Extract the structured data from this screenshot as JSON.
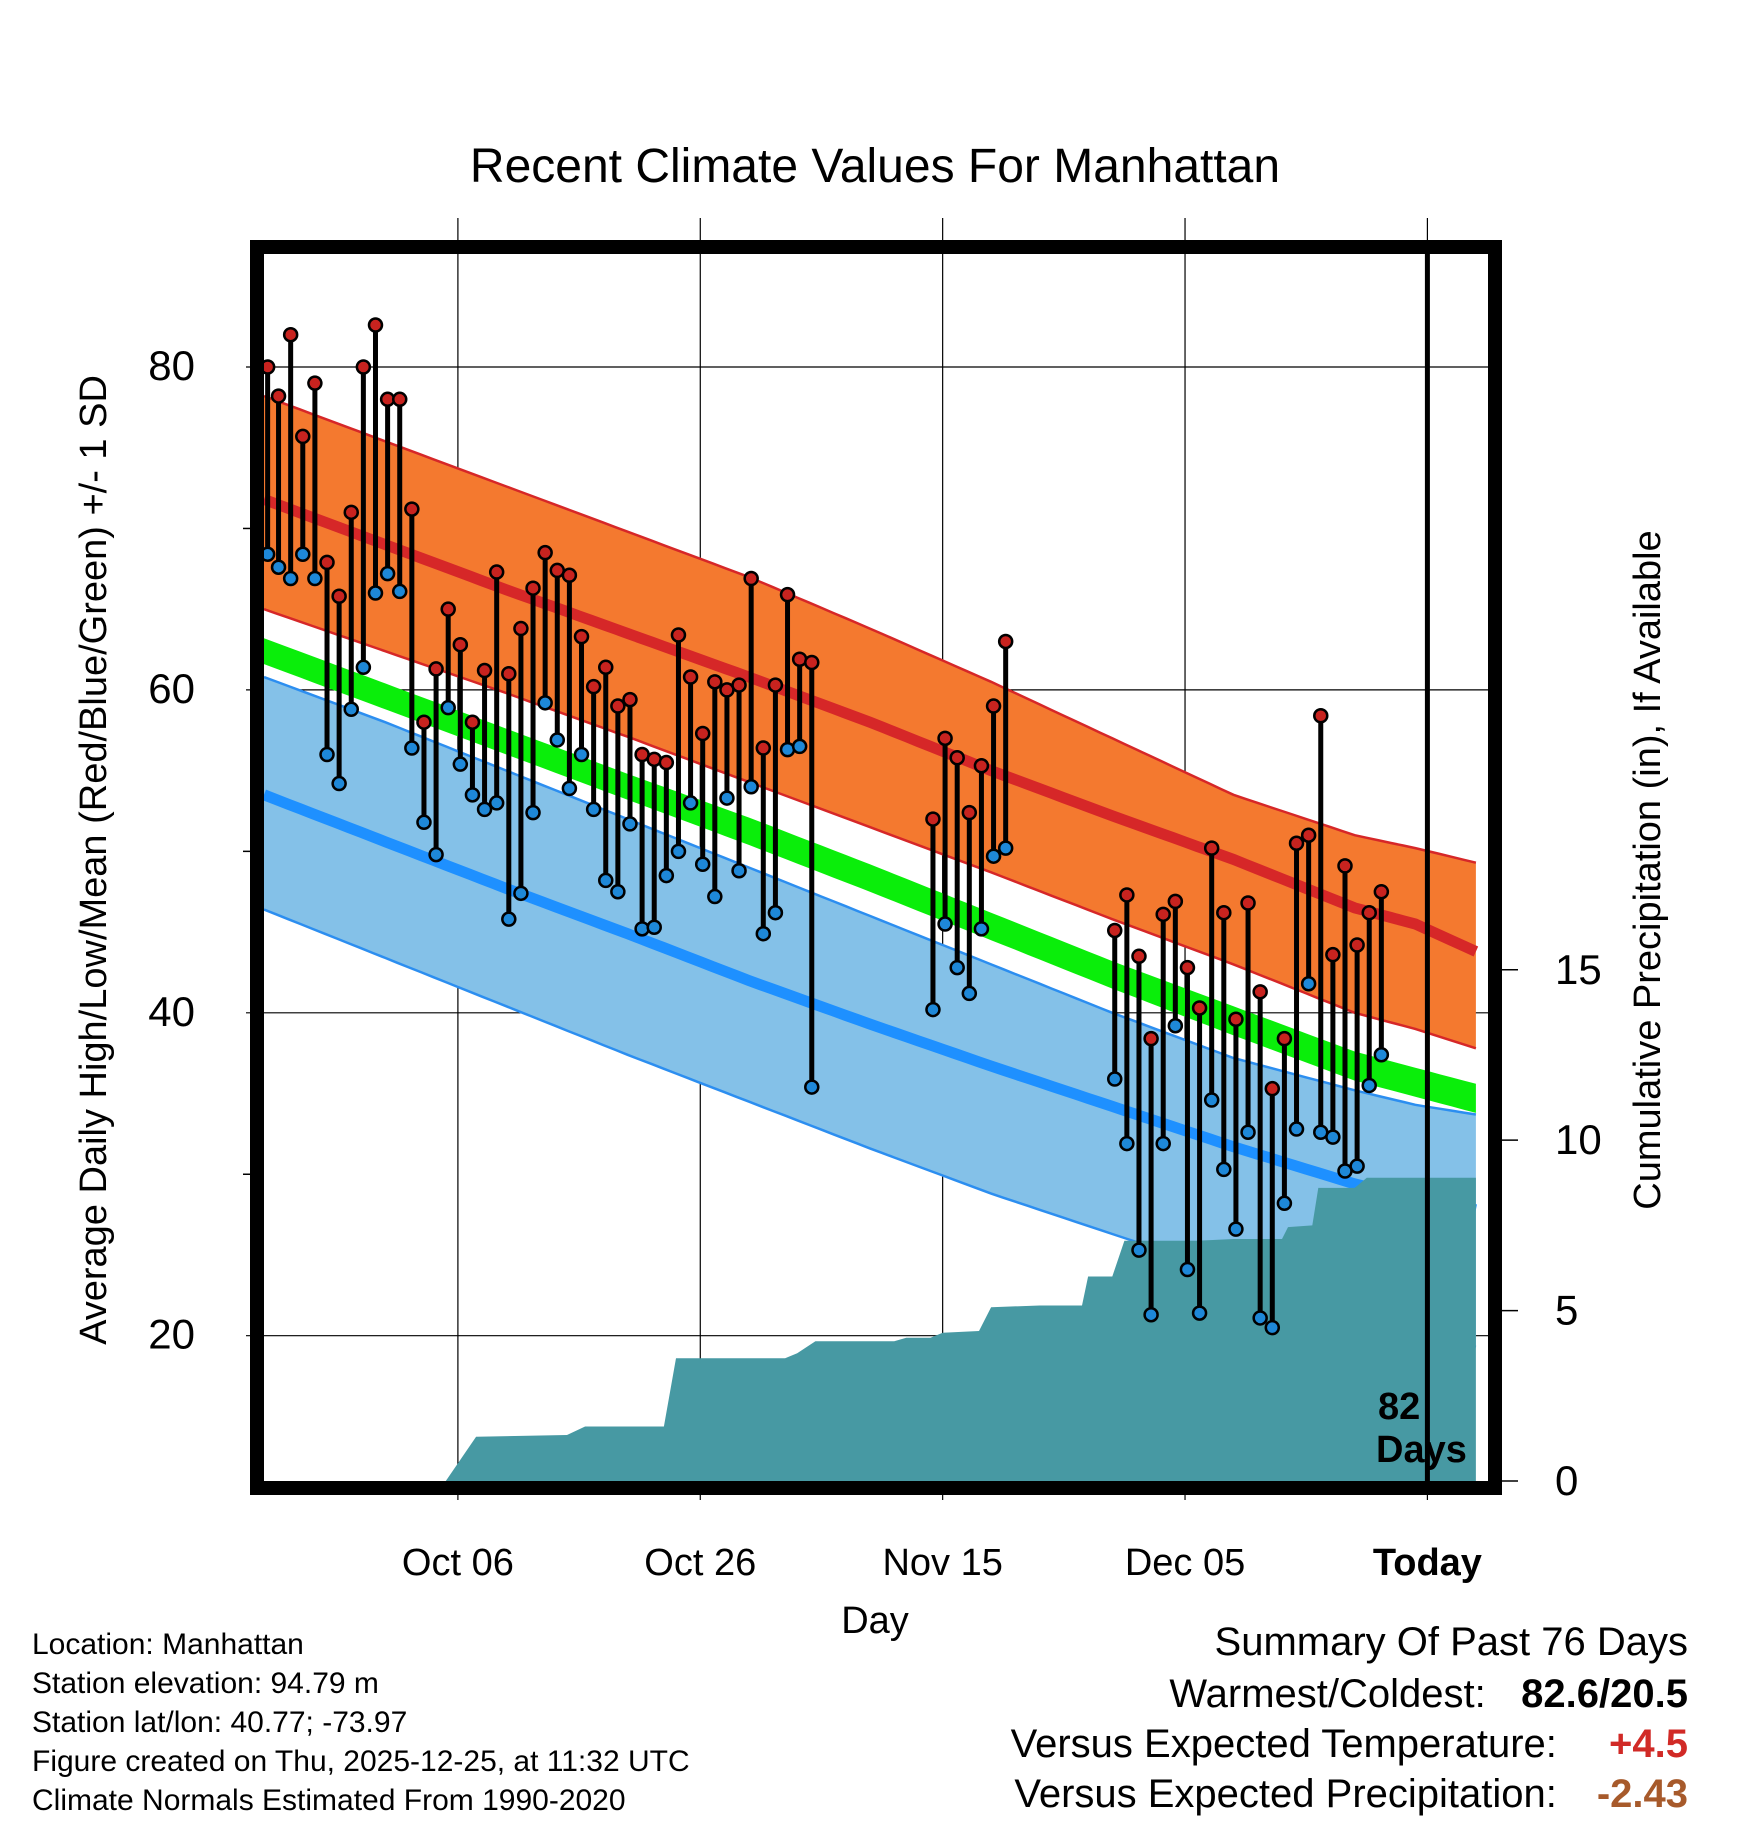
{
  "chart_data": {
    "type": "climate-range",
    "title": "Recent Climate Values For Manhattan",
    "xlabel": "Day",
    "ylabel": "Average Daily High/Low/Mean (Red/Blue/Green) +/- 1 SD",
    "y2label": "Cumulative Precipitation (in), If Available",
    "x_ticks": [
      {
        "day": 16,
        "label": "Oct 06"
      },
      {
        "day": 36,
        "label": "Oct 26"
      },
      {
        "day": 56,
        "label": "Nov 15"
      },
      {
        "day": 76,
        "label": "Dec 05"
      },
      {
        "day": 96,
        "label": "Today"
      }
    ],
    "xlim": [
      0,
      101
    ],
    "ylim": [
      11,
      87
    ],
    "y_ticks": [
      20,
      40,
      60,
      80
    ],
    "y2_ticks": [
      0,
      5,
      10,
      15
    ],
    "y2lim": [
      0,
      36
    ],
    "today_day": 96,
    "today_annotation": [
      "82",
      "Days"
    ],
    "normal_high": [
      [
        0,
        71.8
      ],
      [
        10,
        69
      ],
      [
        20,
        66.2
      ],
      [
        30,
        63.5
      ],
      [
        40,
        60.8
      ],
      [
        50,
        58
      ],
      [
        60,
        55
      ],
      [
        70,
        52.2
      ],
      [
        80,
        49.5
      ],
      [
        90,
        46.5
      ],
      [
        95,
        45.5
      ],
      [
        100,
        43.8
      ]
    ],
    "normal_high_upper": [
      [
        0,
        78.2
      ],
      [
        10,
        75.4
      ],
      [
        20,
        72.6
      ],
      [
        30,
        69.8
      ],
      [
        40,
        67
      ],
      [
        50,
        63.8
      ],
      [
        60,
        60.5
      ],
      [
        70,
        57
      ],
      [
        80,
        53.5
      ],
      [
        90,
        51
      ],
      [
        95,
        50.2
      ],
      [
        100,
        49.3
      ]
    ],
    "normal_high_lower": [
      [
        0,
        65
      ],
      [
        10,
        62.4
      ],
      [
        20,
        59.8
      ],
      [
        30,
        57.1
      ],
      [
        40,
        54.3
      ],
      [
        50,
        51.5
      ],
      [
        60,
        48.7
      ],
      [
        70,
        45.8
      ],
      [
        80,
        43
      ],
      [
        90,
        40
      ],
      [
        95,
        39
      ],
      [
        100,
        37.8
      ]
    ],
    "normal_mean": [
      [
        0,
        62.5
      ],
      [
        10,
        59.8
      ],
      [
        20,
        57
      ],
      [
        30,
        54.2
      ],
      [
        40,
        51.5
      ],
      [
        50,
        48.6
      ],
      [
        60,
        45.6
      ],
      [
        70,
        42.6
      ],
      [
        80,
        39.8
      ],
      [
        90,
        37
      ],
      [
        95,
        36
      ],
      [
        100,
        35
      ]
    ],
    "normal_mean_band_top": [
      [
        0,
        63.2
      ],
      [
        10,
        60.4
      ],
      [
        20,
        57.6
      ],
      [
        30,
        54.8
      ],
      [
        40,
        52.1
      ],
      [
        50,
        49.2
      ],
      [
        60,
        46.2
      ],
      [
        70,
        43.2
      ],
      [
        80,
        40.4
      ],
      [
        90,
        37.6
      ],
      [
        95,
        36.6
      ],
      [
        100,
        35.6
      ]
    ],
    "normal_mean_band_bottom": [
      [
        0,
        61.6
      ],
      [
        10,
        58.8
      ],
      [
        20,
        56
      ],
      [
        30,
        53.2
      ],
      [
        40,
        50.4
      ],
      [
        50,
        47.5
      ],
      [
        60,
        44.5
      ],
      [
        70,
        41.5
      ],
      [
        80,
        38.6
      ],
      [
        90,
        35.8
      ],
      [
        95,
        34.8
      ],
      [
        100,
        33.8
      ]
    ],
    "normal_low": [
      [
        0,
        53.5
      ],
      [
        10,
        50.6
      ],
      [
        20,
        47.7
      ],
      [
        30,
        44.9
      ],
      [
        40,
        42
      ],
      [
        50,
        39.3
      ],
      [
        60,
        36.7
      ],
      [
        70,
        34.2
      ],
      [
        80,
        31.7
      ],
      [
        90,
        29.4
      ],
      [
        95,
        28.5
      ],
      [
        100,
        27.8
      ]
    ],
    "normal_low_upper": [
      [
        0,
        60.8
      ],
      [
        10,
        58
      ],
      [
        20,
        55
      ],
      [
        30,
        52
      ],
      [
        40,
        49
      ],
      [
        50,
        46
      ],
      [
        60,
        43
      ],
      [
        70,
        40
      ],
      [
        80,
        37.2
      ],
      [
        90,
        35.2
      ],
      [
        95,
        34.3
      ],
      [
        100,
        33.7
      ]
    ],
    "normal_low_lower": [
      [
        0,
        46.4
      ],
      [
        10,
        43.4
      ],
      [
        20,
        40.4
      ],
      [
        30,
        37.4
      ],
      [
        40,
        34.5
      ],
      [
        50,
        31.6
      ],
      [
        60,
        28.8
      ],
      [
        70,
        26.3
      ],
      [
        80,
        23.8
      ],
      [
        90,
        21.3
      ],
      [
        95,
        20.3
      ],
      [
        100,
        19.3
      ]
    ],
    "highs": [
      [
        0.3,
        80
      ],
      [
        1.2,
        78.2
      ],
      [
        2.2,
        82
      ],
      [
        3.2,
        75.7
      ],
      [
        4.2,
        79
      ],
      [
        5.2,
        67.9
      ],
      [
        6.2,
        65.8
      ],
      [
        7.2,
        71
      ],
      [
        8.2,
        80
      ],
      [
        9.2,
        82.6
      ],
      [
        10.2,
        78
      ],
      [
        11.2,
        78
      ],
      [
        12.2,
        71.2
      ],
      [
        13.2,
        58
      ],
      [
        14.2,
        61.3
      ],
      [
        15.2,
        65
      ],
      [
        16.2,
        62.8
      ],
      [
        17.2,
        58
      ],
      [
        18.2,
        61.2
      ],
      [
        19.2,
        67.3
      ],
      [
        20.2,
        61
      ],
      [
        21.2,
        63.8
      ],
      [
        22.2,
        66.3
      ],
      [
        23.2,
        68.5
      ],
      [
        24.2,
        67.4
      ],
      [
        25.2,
        67.1
      ],
      [
        26.2,
        63.3
      ],
      [
        27.2,
        60.2
      ],
      [
        28.2,
        61.4
      ],
      [
        29.2,
        59
      ],
      [
        30.2,
        59.4
      ],
      [
        31.2,
        56
      ],
      [
        32.2,
        55.7
      ],
      [
        33.2,
        55.5
      ],
      [
        34.2,
        63.4
      ],
      [
        35.2,
        60.8
      ],
      [
        36.2,
        57.3
      ],
      [
        37.2,
        60.5
      ],
      [
        38.2,
        60
      ],
      [
        39.2,
        60.3
      ],
      [
        40.2,
        66.9
      ],
      [
        41.2,
        56.4
      ],
      [
        42.2,
        60.3
      ],
      [
        43.2,
        65.9
      ],
      [
        44.2,
        61.9
      ],
      [
        45.2,
        61.7
      ],
      [
        55.2,
        52
      ],
      [
        56.2,
        57
      ],
      [
        57.2,
        55.8
      ],
      [
        58.2,
        52.4
      ],
      [
        59.2,
        55.3
      ],
      [
        60.2,
        59
      ],
      [
        61.2,
        63
      ],
      [
        70.2,
        45.1
      ],
      [
        71.2,
        47.3
      ],
      [
        72.2,
        43.5
      ],
      [
        73.2,
        38.4
      ],
      [
        74.2,
        46.1
      ],
      [
        75.2,
        46.9
      ],
      [
        76.2,
        42.8
      ],
      [
        77.2,
        40.3
      ],
      [
        78.2,
        50.2
      ],
      [
        79.2,
        46.2
      ],
      [
        80.2,
        39.6
      ],
      [
        81.2,
        46.8
      ],
      [
        82.2,
        41.3
      ],
      [
        83.2,
        35.3
      ],
      [
        84.2,
        38.4
      ],
      [
        85.2,
        50.5
      ],
      [
        86.2,
        51
      ],
      [
        87.2,
        58.4
      ],
      [
        88.2,
        43.6
      ],
      [
        89.2,
        49.1
      ],
      [
        90.2,
        44.2
      ],
      [
        91.2,
        46.2
      ],
      [
        92.2,
        47.5
      ]
    ],
    "lows": [
      [
        0.3,
        68.4
      ],
      [
        1.2,
        67.6
      ],
      [
        2.2,
        66.9
      ],
      [
        3.2,
        68.4
      ],
      [
        4.2,
        66.9
      ],
      [
        5.2,
        56
      ],
      [
        6.2,
        54.2
      ],
      [
        7.2,
        58.8
      ],
      [
        8.2,
        61.4
      ],
      [
        9.2,
        66
      ],
      [
        10.2,
        67.2
      ],
      [
        11.2,
        66.1
      ],
      [
        12.2,
        56.4
      ],
      [
        13.2,
        51.8
      ],
      [
        14.2,
        49.8
      ],
      [
        15.2,
        58.9
      ],
      [
        16.2,
        55.4
      ],
      [
        17.2,
        53.5
      ],
      [
        18.2,
        52.6
      ],
      [
        19.2,
        53
      ],
      [
        20.2,
        45.8
      ],
      [
        21.2,
        47.4
      ],
      [
        22.2,
        52.4
      ],
      [
        23.2,
        59.2
      ],
      [
        24.2,
        56.9
      ],
      [
        25.2,
        53.9
      ],
      [
        26.2,
        56
      ],
      [
        27.2,
        52.6
      ],
      [
        28.2,
        48.2
      ],
      [
        29.2,
        47.5
      ],
      [
        30.2,
        51.7
      ],
      [
        31.2,
        45.2
      ],
      [
        32.2,
        45.3
      ],
      [
        33.2,
        48.5
      ],
      [
        34.2,
        50
      ],
      [
        35.2,
        53
      ],
      [
        36.2,
        49.2
      ],
      [
        37.2,
        47.2
      ],
      [
        38.2,
        53.3
      ],
      [
        39.2,
        48.8
      ],
      [
        40.2,
        54
      ],
      [
        41.2,
        44.9
      ],
      [
        42.2,
        46.2
      ],
      [
        43.2,
        56.3
      ],
      [
        44.2,
        56.5
      ],
      [
        45.2,
        35.4
      ],
      [
        55.2,
        40.2
      ],
      [
        56.2,
        45.5
      ],
      [
        57.2,
        42.8
      ],
      [
        58.2,
        41.2
      ],
      [
        59.2,
        45.2
      ],
      [
        60.2,
        49.7
      ],
      [
        61.2,
        50.2
      ],
      [
        70.2,
        35.9
      ],
      [
        71.2,
        31.9
      ],
      [
        72.2,
        25.3
      ],
      [
        73.2,
        21.3
      ],
      [
        74.2,
        31.9
      ],
      [
        75.2,
        39.2
      ],
      [
        76.2,
        24.1
      ],
      [
        77.2,
        21.4
      ],
      [
        78.2,
        34.6
      ],
      [
        79.2,
        30.3
      ],
      [
        80.2,
        26.6
      ],
      [
        81.2,
        32.6
      ],
      [
        82.2,
        21.1
      ],
      [
        83.2,
        20.5
      ],
      [
        84.2,
        28.2
      ],
      [
        85.2,
        32.8
      ],
      [
        86.2,
        41.8
      ],
      [
        87.2,
        32.6
      ],
      [
        88.2,
        32.3
      ],
      [
        89.2,
        30.2
      ],
      [
        90.2,
        30.5
      ],
      [
        91.2,
        35.5
      ],
      [
        92.2,
        37.4
      ]
    ],
    "cumulative_precip": [
      [
        15,
        0
      ],
      [
        17.5,
        1.3
      ],
      [
        25,
        1.35
      ],
      [
        26.5,
        1.6
      ],
      [
        33,
        1.6
      ],
      [
        34,
        3.6
      ],
      [
        43,
        3.6
      ],
      [
        44,
        3.75
      ],
      [
        45.5,
        4.1
      ],
      [
        52,
        4.1
      ],
      [
        53,
        4.2
      ],
      [
        55,
        4.2
      ],
      [
        56,
        4.35
      ],
      [
        59,
        4.4
      ],
      [
        60,
        5.1
      ],
      [
        64,
        5.15
      ],
      [
        67,
        5.15
      ],
      [
        67.5,
        5.15
      ],
      [
        68,
        6
      ],
      [
        70,
        6
      ],
      [
        71,
        7.05
      ],
      [
        77,
        7.05
      ],
      [
        80,
        7.1
      ],
      [
        84,
        7.1
      ],
      [
        84.5,
        7.45
      ],
      [
        86.5,
        7.5
      ],
      [
        87,
        8.6
      ],
      [
        90,
        8.6
      ],
      [
        91,
        8.9
      ],
      [
        100,
        8.9
      ]
    ],
    "colors": {
      "high_band": "#f4792f",
      "high_line": "#d62728",
      "low_band": "#84c1e8",
      "low_line": "#1e90ff",
      "low_band_edge": "#2c8ef0",
      "mean_band": "#0aee0a",
      "above_normal_dark": "#8b0f0f",
      "precip": "#4799a3",
      "high_dot": "#c8231f",
      "low_dot": "#1e88d8",
      "positive": "#d12a26",
      "negative": "#a75a2b"
    }
  },
  "metadata": {
    "location": "Location: Manhattan",
    "elevation": "Station elevation: 94.79 m",
    "latlon": "Station lat/lon: 40.77; -73.97",
    "created": "Figure created on Thu, 2025-12-25, at 11:32 UTC",
    "normals": "Climate Normals Estimated From 1990-2020"
  },
  "summary": {
    "heading": "Summary Of Past 76 Days",
    "warmest_coldest_label": "Warmest/Coldest:",
    "warmest_coldest_value": "82.6/20.5",
    "temp_label": "Versus Expected Temperature:",
    "temp_value": "+4.5",
    "precip_label": "Versus Expected Precipitation:",
    "precip_value": "-2.43"
  }
}
